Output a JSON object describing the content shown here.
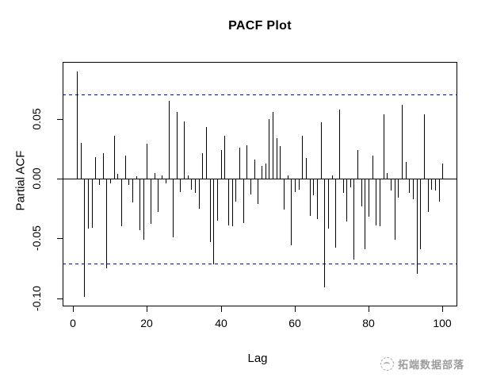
{
  "title": "PACF Plot",
  "watermark": {
    "text": "拓端数据部落",
    "logo": "bird-in-dashed-circle"
  },
  "colors": {
    "bar": "#000000",
    "confidence_line": "#0000ee",
    "axis": "#000000",
    "watermark": "#9c9c9c",
    "background": "#ffffff"
  },
  "chart_data": {
    "type": "bar",
    "title": "PACF Plot",
    "xlabel": "Lag",
    "ylabel": "Partial ACF",
    "x_ticks": [
      0,
      20,
      40,
      60,
      80,
      100
    ],
    "y_ticks": [
      {
        "value": 0.05,
        "label": "0.05"
      },
      {
        "value": 0.0,
        "label": "0.00"
      },
      {
        "value": -0.05,
        "label": "-0.05"
      },
      {
        "value": -0.1,
        "label": "-0.10"
      }
    ],
    "xlim": [
      -2.85,
      104.0
    ],
    "ylim": [
      -0.1069,
      0.0977
    ],
    "grid": false,
    "legend": "none",
    "confidence_bound_upper": 0.0707,
    "confidence_bound_lower": -0.0707,
    "confidence_line_style": "dashed",
    "lag_start": 1,
    "values": [
      0.09,
      0.03,
      -0.099,
      -0.042,
      -0.041,
      0.018,
      -0.005,
      0.021,
      -0.075,
      -0.004,
      0.036,
      0.004,
      -0.04,
      0.019,
      -0.005,
      -0.02,
      0.002,
      -0.043,
      -0.051,
      0.029,
      -0.038,
      0.005,
      -0.028,
      0.003,
      -0.004,
      0.065,
      -0.049,
      0.056,
      -0.011,
      0.048,
      0.003,
      -0.009,
      -0.012,
      -0.025,
      0.021,
      0.043,
      -0.053,
      -0.072,
      -0.035,
      0.024,
      0.036,
      -0.039,
      -0.04,
      -0.019,
      0.026,
      -0.037,
      0.028,
      -0.013,
      0.016,
      -0.021,
      0.011,
      0.013,
      0.05,
      0.056,
      0.034,
      0.027,
      -0.026,
      0.003,
      -0.056,
      -0.011,
      -0.009,
      0.036,
      0.017,
      -0.031,
      -0.014,
      -0.034,
      0.047,
      -0.091,
      -0.042,
      0.003,
      -0.058,
      0.058,
      -0.012,
      -0.036,
      -0.007,
      -0.068,
      0.024,
      -0.023,
      -0.059,
      -0.032,
      0.019,
      -0.039,
      -0.04,
      0.054,
      0.005,
      -0.01,
      -0.051,
      -0.016,
      0.062,
      0.014,
      -0.012,
      -0.017,
      -0.08,
      -0.059,
      0.054,
      -0.028,
      -0.009,
      -0.01,
      -0.019,
      0.013
    ]
  }
}
